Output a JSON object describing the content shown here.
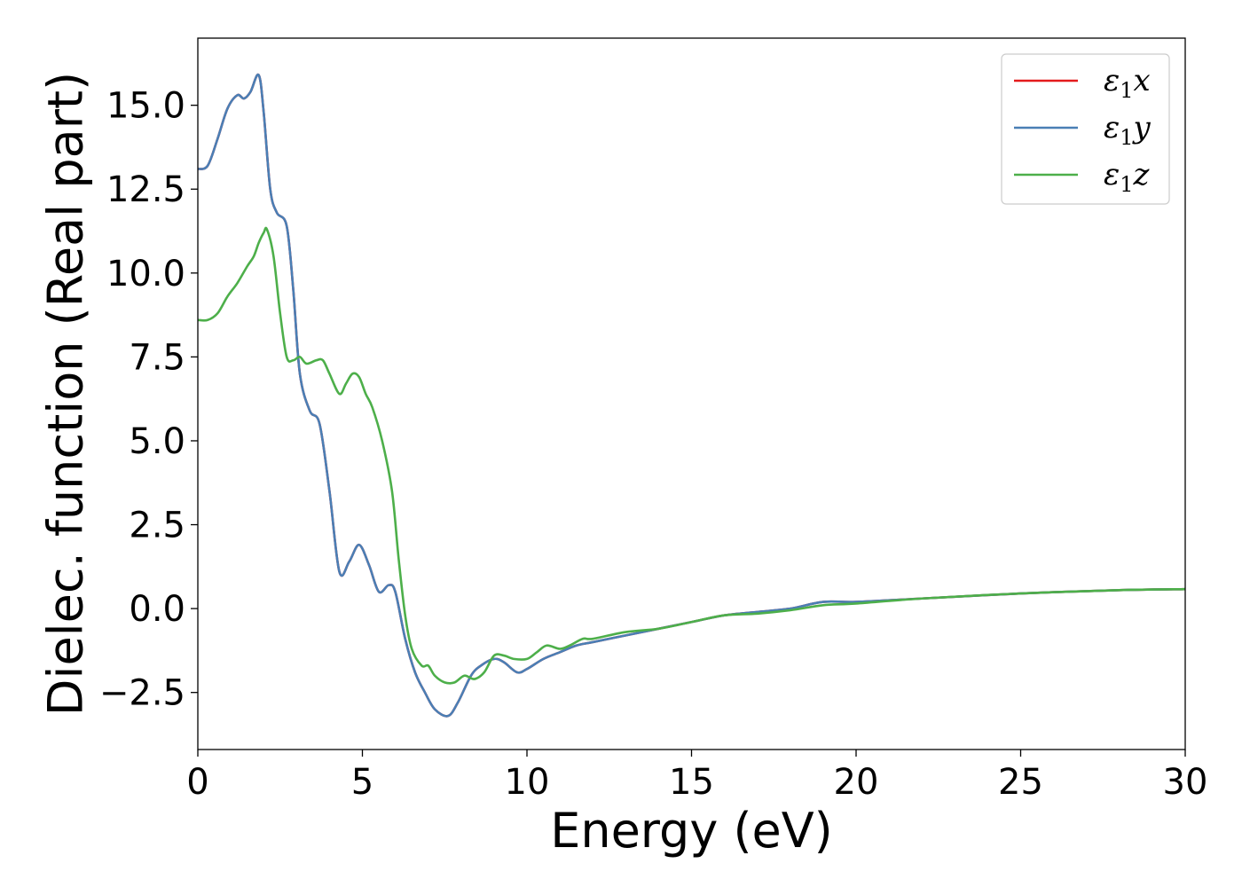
{
  "chart_data": {
    "type": "line",
    "title": "",
    "xlabel": "Energy (eV)",
    "ylabel": "Dielec. function (Real part)",
    "xlim": [
      0,
      30
    ],
    "ylim": [
      -4.2,
      17.0
    ],
    "xticks": [
      0,
      5,
      10,
      15,
      20,
      25,
      30
    ],
    "xtick_labels": [
      "0",
      "5",
      "10",
      "15",
      "20",
      "25",
      "30"
    ],
    "yticks": [
      -2.5,
      0.0,
      2.5,
      5.0,
      7.5,
      10.0,
      12.5,
      15.0
    ],
    "ytick_labels": [
      "−2.5",
      "0.0",
      "2.5",
      "5.0",
      "7.5",
      "10.0",
      "12.5",
      "15.0"
    ],
    "grid": false,
    "legend_position": "top-right",
    "series": [
      {
        "name": "ε₁x",
        "legend_main": "ε",
        "legend_sub": "1",
        "legend_var": "x",
        "color": "#e41a1c",
        "x": [
          0.0,
          0.3,
          0.6,
          0.9,
          1.2,
          1.4,
          1.6,
          1.85,
          2.0,
          2.2,
          2.4,
          2.7,
          2.9,
          3.1,
          3.4,
          3.7,
          4.0,
          4.3,
          4.6,
          4.9,
          5.2,
          5.5,
          5.8,
          6.0,
          6.3,
          6.6,
          6.9,
          7.2,
          7.6,
          7.9,
          8.3,
          8.6,
          9.0,
          9.3,
          9.7,
          10.0,
          10.5,
          11.0,
          11.5,
          12.0,
          13.0,
          14.0,
          15.0,
          16.0,
          17.0,
          18.0,
          19.0,
          20.0,
          22.0,
          25.0,
          28.0,
          30.0
        ],
        "y": [
          13.1,
          13.2,
          14.0,
          14.9,
          15.3,
          15.2,
          15.4,
          15.9,
          14.8,
          12.5,
          11.8,
          11.4,
          9.5,
          7.0,
          5.9,
          5.5,
          3.5,
          1.1,
          1.4,
          1.9,
          1.3,
          0.5,
          0.7,
          0.5,
          -0.9,
          -1.9,
          -2.5,
          -3.0,
          -3.2,
          -2.8,
          -2.0,
          -1.7,
          -1.5,
          -1.6,
          -1.9,
          -1.8,
          -1.5,
          -1.3,
          -1.1,
          -1.0,
          -0.8,
          -0.6,
          -0.4,
          -0.2,
          -0.1,
          0.0,
          0.2,
          0.2,
          0.3,
          0.45,
          0.55,
          0.58
        ]
      },
      {
        "name": "ε₁y",
        "legend_main": "ε",
        "legend_sub": "1",
        "legend_var": "y",
        "color": "#4a7fb5",
        "x": [
          0.0,
          0.3,
          0.6,
          0.9,
          1.2,
          1.4,
          1.6,
          1.85,
          2.0,
          2.2,
          2.4,
          2.7,
          2.9,
          3.1,
          3.4,
          3.7,
          4.0,
          4.3,
          4.6,
          4.9,
          5.2,
          5.5,
          5.8,
          6.0,
          6.3,
          6.6,
          6.9,
          7.2,
          7.6,
          7.9,
          8.3,
          8.6,
          9.0,
          9.3,
          9.7,
          10.0,
          10.5,
          11.0,
          11.5,
          12.0,
          13.0,
          14.0,
          15.0,
          16.0,
          17.0,
          18.0,
          19.0,
          20.0,
          22.0,
          25.0,
          28.0,
          30.0
        ],
        "y": [
          13.1,
          13.2,
          14.0,
          14.9,
          15.3,
          15.2,
          15.4,
          15.9,
          14.8,
          12.5,
          11.8,
          11.4,
          9.5,
          7.0,
          5.9,
          5.5,
          3.5,
          1.1,
          1.4,
          1.9,
          1.3,
          0.5,
          0.7,
          0.5,
          -0.9,
          -1.9,
          -2.5,
          -3.0,
          -3.2,
          -2.8,
          -2.0,
          -1.7,
          -1.5,
          -1.6,
          -1.9,
          -1.8,
          -1.5,
          -1.3,
          -1.1,
          -1.0,
          -0.8,
          -0.6,
          -0.4,
          -0.2,
          -0.1,
          0.0,
          0.2,
          0.2,
          0.3,
          0.45,
          0.55,
          0.58
        ]
      },
      {
        "name": "ε₁z",
        "legend_main": "ε",
        "legend_sub": "1",
        "legend_var": "z",
        "color": "#4daf4a",
        "x": [
          0.0,
          0.3,
          0.6,
          0.9,
          1.2,
          1.5,
          1.7,
          1.85,
          2.0,
          2.1,
          2.3,
          2.5,
          2.7,
          2.9,
          3.1,
          3.3,
          3.6,
          3.8,
          4.0,
          4.3,
          4.5,
          4.7,
          4.9,
          5.1,
          5.3,
          5.6,
          5.9,
          6.1,
          6.3,
          6.5,
          6.8,
          7.0,
          7.2,
          7.5,
          7.8,
          8.1,
          8.4,
          8.7,
          9.0,
          9.3,
          9.6,
          10.0,
          10.3,
          10.6,
          11.0,
          11.3,
          11.7,
          12.0,
          13.0,
          14.0,
          15.0,
          16.0,
          17.0,
          18.0,
          19.0,
          20.0,
          22.0,
          25.0,
          28.0,
          30.0
        ],
        "y": [
          8.6,
          8.6,
          8.8,
          9.3,
          9.7,
          10.2,
          10.5,
          10.9,
          11.2,
          11.3,
          10.5,
          8.8,
          7.5,
          7.4,
          7.5,
          7.3,
          7.4,
          7.4,
          7.0,
          6.4,
          6.7,
          7.0,
          6.9,
          6.4,
          6.0,
          5.0,
          3.5,
          1.5,
          -0.2,
          -1.2,
          -1.7,
          -1.7,
          -2.0,
          -2.2,
          -2.2,
          -2.0,
          -2.1,
          -1.9,
          -1.4,
          -1.4,
          -1.5,
          -1.5,
          -1.3,
          -1.1,
          -1.2,
          -1.1,
          -0.9,
          -0.9,
          -0.7,
          -0.6,
          -0.4,
          -0.2,
          -0.15,
          -0.05,
          0.1,
          0.15,
          0.3,
          0.45,
          0.55,
          0.58
        ]
      }
    ]
  }
}
